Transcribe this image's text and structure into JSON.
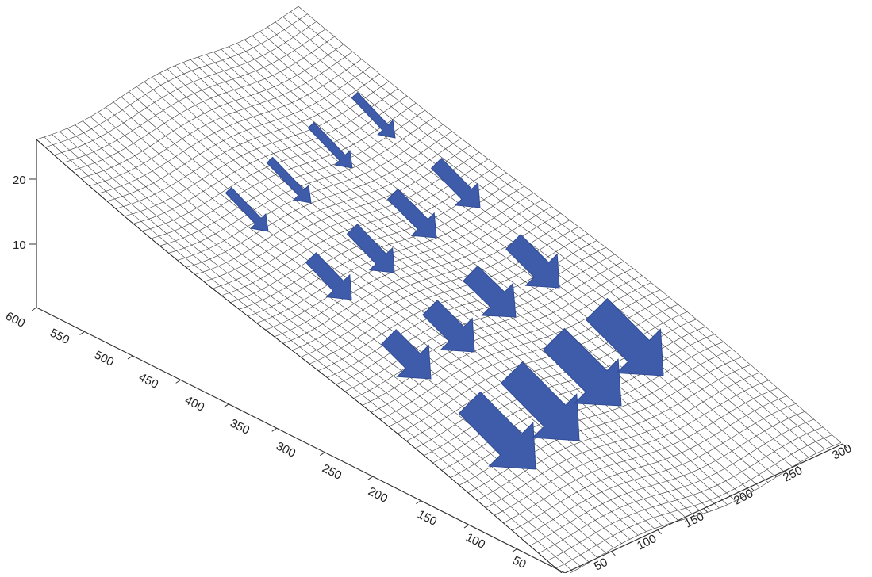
{
  "figure": {
    "z_axis": {
      "ticks": [
        "20",
        "10"
      ]
    },
    "y_axis": {
      "ticks": [
        "600",
        "550",
        "500",
        "450",
        "400",
        "350",
        "300",
        "250",
        "200",
        "150",
        "100",
        "50"
      ]
    },
    "x_axis": {
      "ticks": [
        "50",
        "100",
        "150",
        "200",
        "250",
        "300"
      ]
    },
    "surface": {
      "description_hidden": true,
      "mesh_color": "#3a3a3a"
    },
    "arrows": {
      "color": "#3f5cab",
      "rows": [
        {
          "row": 1,
          "count": 4,
          "relative_size": "small"
        },
        {
          "row": 2,
          "count": 4,
          "relative_size": "medium"
        },
        {
          "row": 3,
          "count": 4,
          "relative_size": "large"
        },
        {
          "row": 4,
          "count": 4,
          "relative_size": "largest"
        }
      ]
    }
  }
}
